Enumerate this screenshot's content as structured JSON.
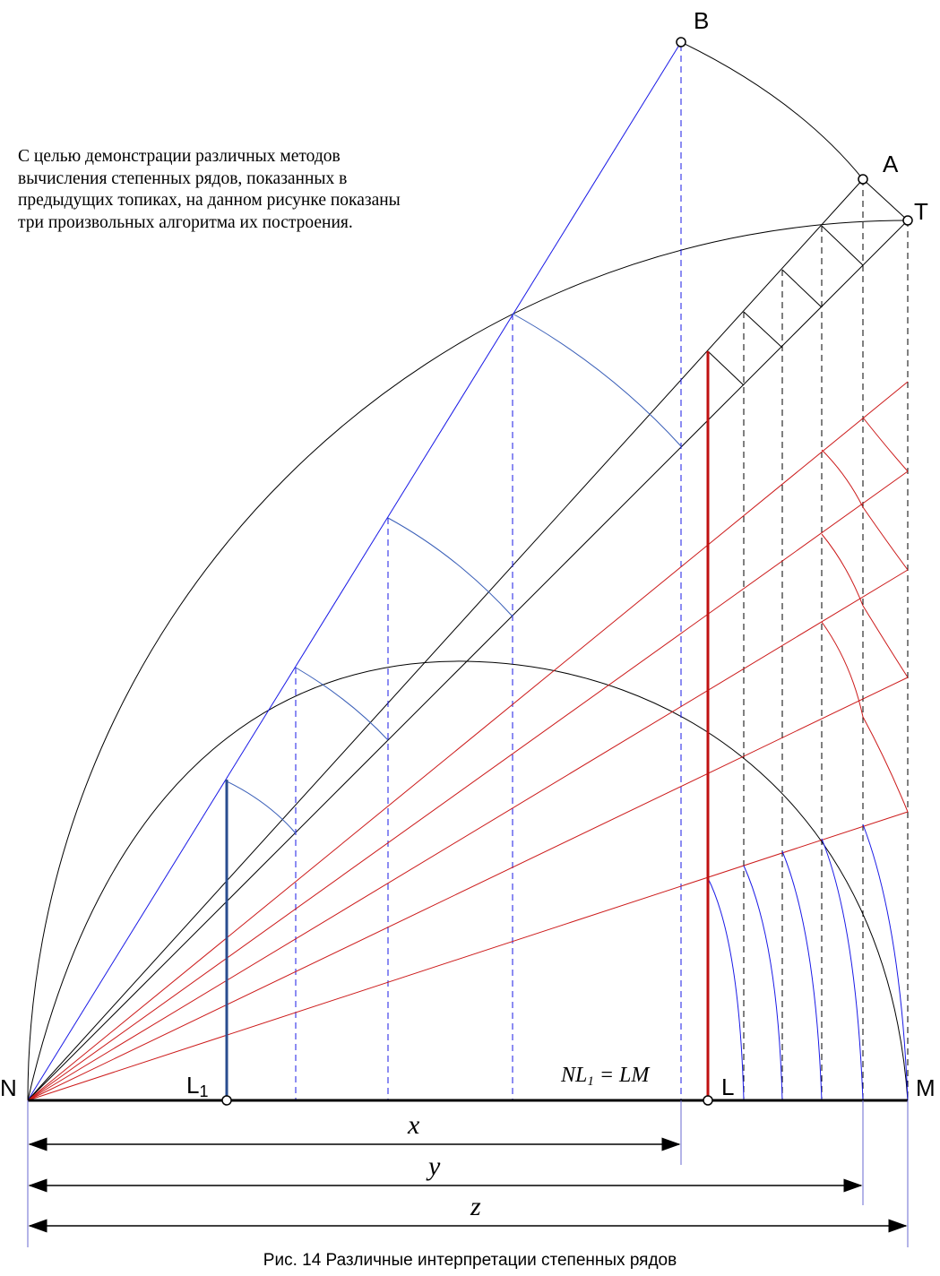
{
  "intro_lines": [
    "С целью демонстрации различных методов",
    "вычисления степенных рядов, показанных в",
    "предыдущих топиках, на данном рисунке показаны",
    "три произвольных алгоритма их построения."
  ],
  "points": {
    "B": "B",
    "A": "A",
    "T": "T",
    "N": "N",
    "L1_main": "L",
    "L1_sub": "1",
    "L": "L",
    "M": "M"
  },
  "formula": {
    "nl": "NL",
    "sub": "1",
    "rest": " = LM"
  },
  "dimensions": {
    "x": "x",
    "y": "y",
    "z": "z"
  },
  "caption": "Рис. 14  Различные интерпретации степенных рядов",
  "colors": {
    "blue_construction": "#1a1ae6",
    "red_construction": "#cc1a1a",
    "black": "#000000",
    "arc_blue": "#3a5fb8",
    "thick_blue": "#2a4d8f",
    "thick_red": "#c01010"
  }
}
